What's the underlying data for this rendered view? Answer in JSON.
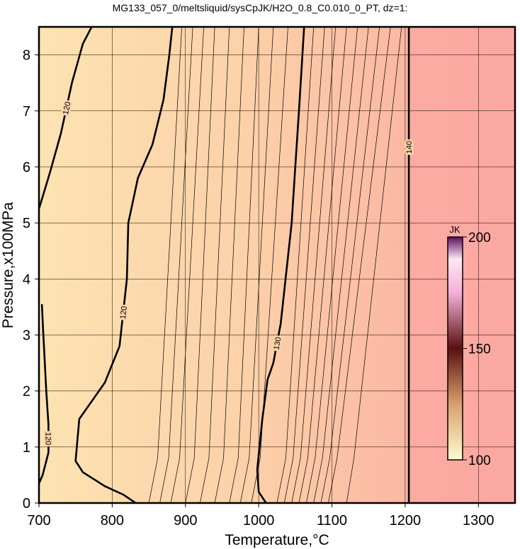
{
  "chart_data": {
    "type": "contour",
    "title": "MG133_057_0/meltsliquid/sysCpJK/H2O_0.8_C0.010_0_PT, dz=1:",
    "x_label": "Temperature,°C",
    "y_label": "Pressure,x100MPa",
    "xlim": [
      700,
      1350
    ],
    "ylim": [
      0,
      8.5
    ],
    "xticks": [
      700,
      800,
      900,
      1000,
      1100,
      1200,
      1300
    ],
    "yticks": [
      0,
      1,
      2,
      3,
      4,
      5,
      6,
      7,
      8
    ],
    "grid": true,
    "colorbar": {
      "label": "JK",
      "lim": [
        100,
        200
      ],
      "ticks": [
        100,
        150,
        200
      ]
    },
    "contours": [
      {
        "level": 120,
        "bold": true,
        "x": [
          704,
          706,
          710,
          713,
          713,
          705,
          700
        ],
        "y": [
          3.55,
          3.0,
          2.0,
          1.4,
          0.9,
          0.5,
          0.35
        ]
      },
      {
        "level": 120,
        "bold": true,
        "x": [
          700,
          715,
          730,
          745,
          760,
          772
        ],
        "y": [
          5.25,
          5.9,
          6.6,
          7.5,
          8.2,
          8.5
        ]
      },
      {
        "level": 120,
        "bold": true,
        "x": [
          832,
          815,
          790,
          760,
          750,
          755,
          790,
          810,
          820,
          822,
          835,
          855,
          870,
          878,
          882
        ],
        "y": [
          0,
          0.15,
          0.3,
          0.55,
          0.75,
          1.5,
          2.15,
          2.8,
          4.0,
          5.0,
          5.8,
          6.4,
          7.2,
          8.0,
          8.5
        ]
      },
      {
        "level": 130,
        "bold": true,
        "x": [
          1010,
          1000,
          998,
          1005,
          1012,
          1020,
          1030,
          1045,
          1050,
          1055,
          1062
        ],
        "y": [
          0,
          0.2,
          0.6,
          1.5,
          2.2,
          2.5,
          3.2,
          5.0,
          6.0,
          7.0,
          8.5
        ]
      },
      {
        "level": 140,
        "bold": true,
        "x": [
          1205,
          1205,
          1205
        ],
        "y": [
          0,
          4.2,
          8.5
        ]
      },
      {
        "level": 121,
        "bold": false,
        "x": [
          850,
          862,
          895
        ],
        "y": [
          0,
          0.8,
          8.5
        ]
      },
      {
        "level": 122,
        "bold": false,
        "x": [
          865,
          877,
          910
        ],
        "y": [
          0,
          0.8,
          8.5
        ]
      },
      {
        "level": 123,
        "bold": false,
        "x": [
          880,
          892,
          925
        ],
        "y": [
          0,
          0.8,
          8.5
        ]
      },
      {
        "level": 124,
        "bold": false,
        "x": [
          900,
          912,
          940
        ],
        "y": [
          0,
          0.8,
          8.5
        ]
      },
      {
        "level": 125,
        "bold": false,
        "x": [
          920,
          932,
          960
        ],
        "y": [
          0,
          0.8,
          8.5
        ]
      },
      {
        "level": 126,
        "bold": false,
        "x": [
          940,
          952,
          980
        ],
        "y": [
          0,
          0.8,
          8.5
        ]
      },
      {
        "level": 127,
        "bold": false,
        "x": [
          960,
          972,
          1000
        ],
        "y": [
          0,
          0.8,
          8.5
        ]
      },
      {
        "level": 128,
        "bold": false,
        "x": [
          975,
          987,
          1020
        ],
        "y": [
          0,
          0.8,
          8.5
        ]
      },
      {
        "level": 129,
        "bold": false,
        "x": [
          990,
          1002,
          1040
        ],
        "y": [
          0,
          0.8,
          8.5
        ]
      },
      {
        "level": 131,
        "bold": false,
        "x": [
          1025,
          1037,
          1075
        ],
        "y": [
          0,
          0.8,
          8.5
        ]
      },
      {
        "level": 132,
        "bold": false,
        "x": [
          1035,
          1047,
          1090
        ],
        "y": [
          0,
          0.8,
          8.5
        ]
      },
      {
        "level": 133,
        "bold": false,
        "x": [
          1045,
          1057,
          1105
        ],
        "y": [
          0,
          0.8,
          8.5
        ]
      },
      {
        "level": 134,
        "bold": false,
        "x": [
          1055,
          1067,
          1120
        ],
        "y": [
          0,
          0.8,
          8.5
        ]
      },
      {
        "level": 135,
        "bold": false,
        "x": [
          1065,
          1077,
          1135
        ],
        "y": [
          0,
          0.8,
          8.5
        ]
      },
      {
        "level": 136,
        "bold": false,
        "x": [
          1075,
          1087,
          1150
        ],
        "y": [
          0,
          0.8,
          8.5
        ]
      },
      {
        "level": 137,
        "bold": false,
        "x": [
          1085,
          1097,
          1165
        ],
        "y": [
          0,
          0.8,
          8.5
        ]
      },
      {
        "level": 138,
        "bold": false,
        "x": [
          1095,
          1107,
          1180
        ],
        "y": [
          0,
          0.8,
          8.5
        ]
      },
      {
        "level": 139,
        "bold": false,
        "x": [
          1120,
          1130,
          1195
        ],
        "y": [
          0,
          0.8,
          8.5
        ]
      }
    ]
  }
}
